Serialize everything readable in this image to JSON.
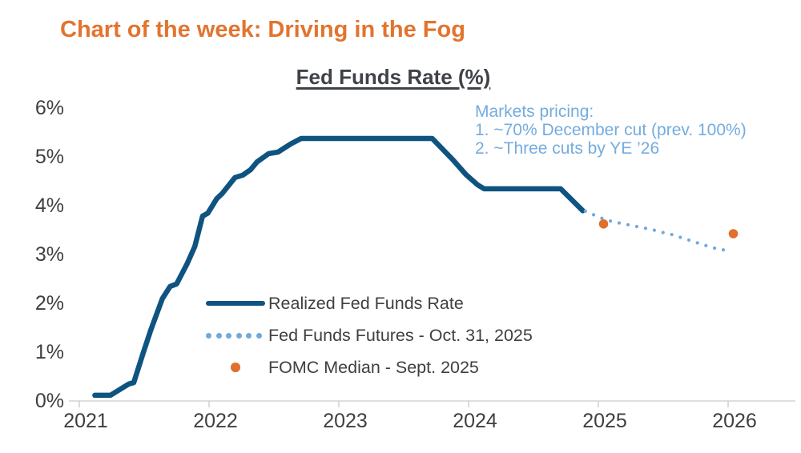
{
  "header": {
    "title": "Chart of the week: Driving in the Fog",
    "color": "#e2742e"
  },
  "legend": {
    "label_color": "#3f3f3f"
  },
  "chart_data": {
    "type": "line",
    "title": "Fed Funds Rate (%)",
    "title_color": "#3f4247",
    "x_ticks": [
      "2021",
      "2022",
      "2023",
      "2024",
      "2025",
      "2026"
    ],
    "y_ticks": [
      "6%",
      "5%",
      "4%",
      "3%",
      "2%",
      "1%",
      "0%"
    ],
    "ylim": [
      0,
      6
    ],
    "xlim": [
      2020.9,
      2026.5
    ],
    "grid": false,
    "legend_position": "inside-center-left",
    "axis": {
      "line_color": "#dedede",
      "tick_color": "#d0d0d0",
      "label_color": "#3f3f3f"
    },
    "series": [
      {
        "name": "Realized Fed Funds Rate",
        "style": "solid-line",
        "color": "#0f5380",
        "points": [
          [
            2021.12,
            0.1
          ],
          [
            2021.24,
            0.1
          ],
          [
            2021.38,
            0.33
          ],
          [
            2021.42,
            0.36
          ],
          [
            2021.49,
            0.95
          ],
          [
            2021.55,
            1.43
          ],
          [
            2021.64,
            2.08
          ],
          [
            2021.7,
            2.33
          ],
          [
            2021.75,
            2.38
          ],
          [
            2021.83,
            2.79
          ],
          [
            2021.89,
            3.15
          ],
          [
            2021.95,
            3.77
          ],
          [
            2021.99,
            3.83
          ],
          [
            2022.06,
            4.13
          ],
          [
            2022.1,
            4.23
          ],
          [
            2022.2,
            4.56
          ],
          [
            2022.26,
            4.61
          ],
          [
            2022.32,
            4.72
          ],
          [
            2022.37,
            4.88
          ],
          [
            2022.46,
            5.05
          ],
          [
            2022.53,
            5.08
          ],
          [
            2022.63,
            5.25
          ],
          [
            2022.71,
            5.36
          ],
          [
            2023.72,
            5.36
          ],
          [
            2023.88,
            4.92
          ],
          [
            2023.98,
            4.62
          ],
          [
            2024.07,
            4.41
          ],
          [
            2024.12,
            4.33
          ],
          [
            2024.71,
            4.33
          ],
          [
            2024.88,
            3.88
          ]
        ]
      },
      {
        "name": "Fed Funds Futures - Oct. 31, 2025",
        "style": "dotted-line",
        "color": "#6fa9de",
        "points": [
          [
            2024.9,
            3.87
          ],
          [
            2024.97,
            3.79
          ],
          [
            2025.05,
            3.7
          ],
          [
            2025.12,
            3.65
          ],
          [
            2025.2,
            3.61
          ],
          [
            2025.27,
            3.57
          ],
          [
            2025.35,
            3.53
          ],
          [
            2025.42,
            3.49
          ],
          [
            2025.49,
            3.44
          ],
          [
            2025.57,
            3.39
          ],
          [
            2025.64,
            3.33
          ],
          [
            2025.72,
            3.26
          ],
          [
            2025.79,
            3.2
          ],
          [
            2025.86,
            3.14
          ],
          [
            2025.93,
            3.09
          ],
          [
            2025.99,
            3.07
          ]
        ]
      },
      {
        "name": "FOMC Median - Sept. 2025",
        "style": "scatter-dots",
        "color": "#e0702d",
        "points": [
          [
            2025.04,
            3.61
          ],
          [
            2026.04,
            3.41
          ]
        ]
      }
    ],
    "annotation": {
      "color": "#74acde",
      "title": "Markets pricing:",
      "item1": "1. ~70% December cut (prev. 100%)",
      "item2": "2. ~Three cuts by YE ’26"
    }
  }
}
